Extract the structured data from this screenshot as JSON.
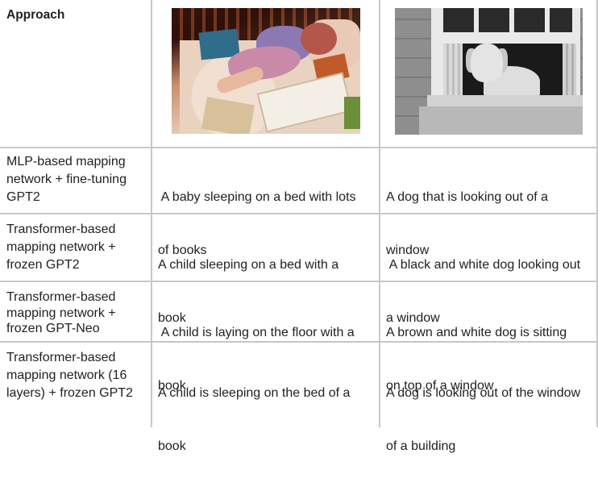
{
  "header": {
    "approach_label": "Approach"
  },
  "images": [
    {
      "icon": "photo-baby-sleeping-books"
    },
    {
      "icon": "photo-dog-window-grayscale"
    }
  ],
  "rows": [
    {
      "approach_lines": [
        "MLP-based mapping",
        "network + fine-tuning",
        "GPT2"
      ],
      "caption1_lines": [
        " A baby sleeping on a bed with lots",
        "of books"
      ],
      "caption2_lines": [
        "A dog that is looking out of a",
        "window"
      ]
    },
    {
      "approach_lines": [
        "Transformer-based",
        "mapping network +",
        "frozen GPT2"
      ],
      "caption1_lines": [
        "A child sleeping on a bed with a",
        "book"
      ],
      "caption2_lines": [
        " A black and white dog looking out",
        "a window"
      ]
    },
    {
      "approach_lines": [
        "Transformer-based",
        "mapping network +",
        "frozen GPT-Neo"
      ],
      "caption1_lines": [
        " A child is laying on the floor with a",
        "book"
      ],
      "caption2_lines": [
        "A brown and white dog is sitting",
        "on top of a window"
      ]
    },
    {
      "approach_lines": [
        "Transformer-based",
        "mapping network (16",
        "layers) + frozen GPT2"
      ],
      "caption1_lines": [
        "A child is sleeping on the bed of a",
        "book"
      ],
      "caption2_lines": [
        "A dog is looking out of the window",
        "of a building"
      ]
    }
  ]
}
